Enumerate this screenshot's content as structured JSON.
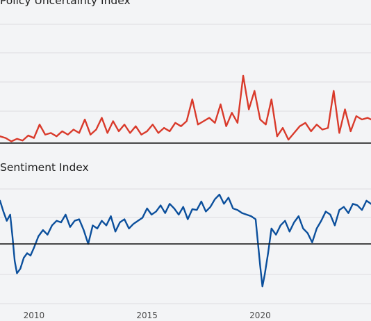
{
  "chart_data": [
    {
      "type": "line",
      "title": "Policy Uncertainty Index",
      "xlabel": "",
      "ylabel": "",
      "xlim": [
        2008.5,
        2024.9
      ],
      "ylim": [
        -10,
        170
      ],
      "baseline": 0,
      "grid": true,
      "series": [
        {
          "color": "#d93a2b",
          "x": [
            2008.5,
            2008.75,
            2009.0,
            2009.25,
            2009.5,
            2009.75,
            2010.0,
            2010.25,
            2010.5,
            2010.75,
            2011.0,
            2011.25,
            2011.5,
            2011.75,
            2012.0,
            2012.25,
            2012.5,
            2012.75,
            2013.0,
            2013.25,
            2013.5,
            2013.75,
            2014.0,
            2014.25,
            2014.5,
            2014.75,
            2015.0,
            2015.25,
            2015.5,
            2015.75,
            2016.0,
            2016.25,
            2016.5,
            2016.75,
            2017.0,
            2017.25,
            2017.5,
            2017.75,
            2018.0,
            2018.25,
            2018.5,
            2018.75,
            2019.0,
            2019.25,
            2019.5,
            2019.75,
            2020.0,
            2020.25,
            2020.5,
            2020.75,
            2021.0,
            2021.25,
            2021.5,
            2021.75,
            2022.0,
            2022.25,
            2022.5,
            2022.75,
            2023.0,
            2023.25,
            2023.5,
            2023.75,
            2024.0,
            2024.25,
            2024.5,
            2024.75,
            2024.9
          ],
          "y": [
            8,
            6,
            2,
            5,
            3,
            9,
            6,
            22,
            10,
            12,
            8,
            14,
            10,
            16,
            12,
            28,
            10,
            16,
            30,
            12,
            26,
            14,
            22,
            12,
            20,
            10,
            14,
            22,
            12,
            18,
            14,
            24,
            20,
            26,
            52,
            22,
            26,
            30,
            24,
            46,
            20,
            36,
            24,
            80,
            40,
            62,
            28,
            22,
            52,
            8,
            18,
            4,
            12,
            20,
            24,
            14,
            22,
            16,
            18,
            62,
            12,
            40,
            14,
            32,
            28,
            30,
            28
          ]
        }
      ]
    },
    {
      "type": "line",
      "title": "Sentiment Index",
      "xlabel": "",
      "ylabel": "",
      "xlim": [
        2008.5,
        2024.9
      ],
      "ylim": [
        -80,
        100
      ],
      "baseline": 0,
      "grid": true,
      "x_ticks": [
        "2010",
        "2015",
        "2020"
      ],
      "series": [
        {
          "color": "#0b4f9c",
          "x": [
            2008.5,
            2008.65,
            2008.8,
            2008.95,
            2009.05,
            2009.15,
            2009.25,
            2009.4,
            2009.55,
            2009.7,
            2009.85,
            2010.0,
            2010.2,
            2010.4,
            2010.6,
            2010.8,
            2011.0,
            2011.2,
            2011.4,
            2011.6,
            2011.8,
            2012.0,
            2012.2,
            2012.4,
            2012.6,
            2012.8,
            2013.0,
            2013.2,
            2013.4,
            2013.6,
            2013.8,
            2014.0,
            2014.2,
            2014.4,
            2014.6,
            2014.8,
            2015.0,
            2015.2,
            2015.4,
            2015.6,
            2015.8,
            2016.0,
            2016.2,
            2016.4,
            2016.6,
            2016.8,
            2017.0,
            2017.2,
            2017.4,
            2017.6,
            2017.8,
            2018.0,
            2018.2,
            2018.4,
            2018.6,
            2018.8,
            2019.0,
            2019.2,
            2019.4,
            2019.6,
            2019.8,
            2020.0,
            2020.1,
            2020.2,
            2020.35,
            2020.5,
            2020.7,
            2020.9,
            2021.1,
            2021.3,
            2021.5,
            2021.7,
            2021.9,
            2022.1,
            2022.3,
            2022.5,
            2022.7,
            2022.9,
            2023.1,
            2023.3,
            2023.5,
            2023.7,
            2023.9,
            2024.1,
            2024.3,
            2024.5,
            2024.7,
            2024.9
          ],
          "y": [
            56,
            42,
            30,
            38,
            10,
            -22,
            -38,
            -32,
            -18,
            -12,
            -15,
            -5,
            10,
            18,
            12,
            24,
            30,
            28,
            38,
            22,
            30,
            32,
            18,
            0,
            24,
            20,
            30,
            24,
            36,
            16,
            28,
            32,
            20,
            26,
            30,
            34,
            46,
            38,
            42,
            50,
            40,
            52,
            46,
            38,
            48,
            32,
            45,
            44,
            55,
            42,
            48,
            58,
            64,
            52,
            60,
            46,
            44,
            40,
            38,
            36,
            32,
            -28,
            -55,
            -40,
            -12,
            20,
            12,
            24,
            30,
            16,
            28,
            36,
            20,
            14,
            2,
            20,
            30,
            42,
            38,
            24,
            44,
            48,
            40,
            52,
            50,
            44,
            56,
            52
          ]
        }
      ]
    }
  ]
}
